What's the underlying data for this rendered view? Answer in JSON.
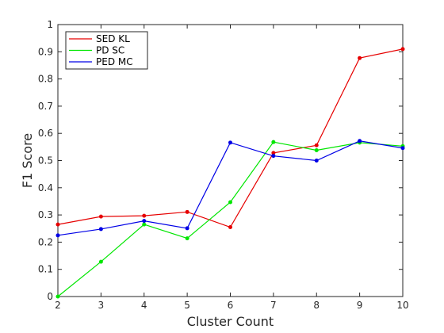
{
  "chart_data": {
    "type": "line",
    "xlabel": "Cluster Count",
    "ylabel": "F1 Score",
    "x": [
      2,
      3,
      4,
      5,
      6,
      7,
      8,
      9,
      10
    ],
    "xlim": [
      2,
      10
    ],
    "ylim": [
      0,
      1
    ],
    "xticks": [
      "2",
      "3",
      "4",
      "5",
      "6",
      "7",
      "8",
      "9",
      "10"
    ],
    "yticks": [
      "0",
      "0.1",
      "0.2",
      "0.3",
      "0.4",
      "0.5",
      "0.6",
      "0.7",
      "0.8",
      "0.9",
      "1"
    ],
    "grid": false,
    "legend_position": "top-left",
    "series": [
      {
        "name": "SED KL",
        "color": "#e60000",
        "values": [
          0.265,
          0.294,
          0.297,
          0.311,
          0.255,
          0.528,
          0.556,
          0.877,
          0.91
        ]
      },
      {
        "name": "PD SC",
        "color": "#00e600",
        "values": [
          0.0,
          0.128,
          0.265,
          0.214,
          0.347,
          0.568,
          0.538,
          0.566,
          0.553
        ]
      },
      {
        "name": "PED MC",
        "color": "#0000e6",
        "values": [
          0.225,
          0.248,
          0.278,
          0.251,
          0.566,
          0.517,
          0.5,
          0.572,
          0.546
        ]
      }
    ]
  }
}
